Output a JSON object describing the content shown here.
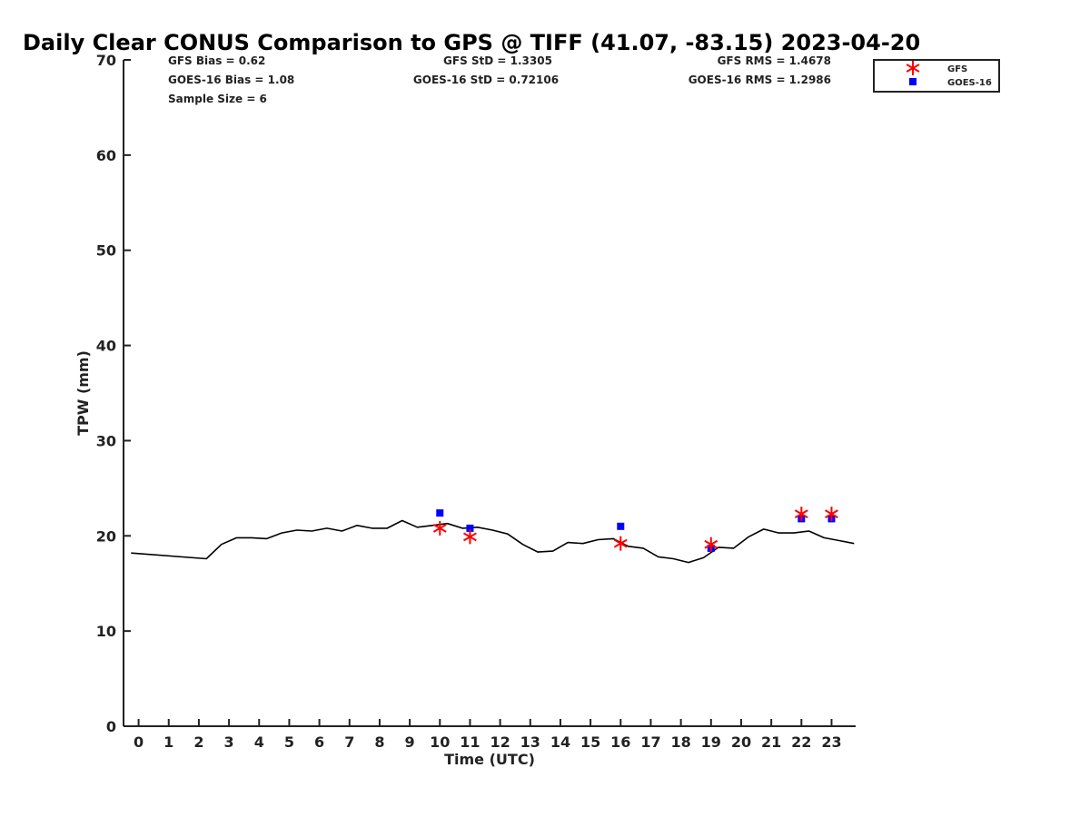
{
  "chart_data": {
    "type": "scatter",
    "title": "Daily Clear CONUS Comparison to GPS @ TIFF (41.07, -83.15) 2023-04-20",
    "xlabel": "Time (UTC)",
    "ylabel": "TPW (mm)",
    "xlim": [
      -0.5,
      23.8
    ],
    "ylim": [
      0,
      70
    ],
    "x_ticks": [
      "0",
      "1",
      "2",
      "3",
      "4",
      "5",
      "6",
      "7",
      "8",
      "9",
      "10",
      "11",
      "12",
      "13",
      "14",
      "15",
      "16",
      "17",
      "18",
      "19",
      "20",
      "21",
      "22",
      "23"
    ],
    "y_ticks": [
      "0",
      "10",
      "20",
      "30",
      "40",
      "50",
      "60",
      "70"
    ],
    "grid": false,
    "legend_position": "top-right, outside plot",
    "stats": {
      "gfs_bias": "GFS Bias = 0.62",
      "goes_bias": "GOES-16 Bias = 1.08",
      "sample_size": "Sample Size = 6",
      "gfs_std": "GFS StD = 1.3305",
      "goes_std": "GOES-16 StD = 0.72106",
      "gfs_rms": "GFS RMS = 1.4678",
      "goes_rms": "GOES-16 RMS = 1.2986"
    },
    "series": [
      {
        "type": "line",
        "color": "#000000",
        "x": [
          -0.25,
          2.25,
          2.75,
          3.25,
          3.75,
          4.25,
          4.75,
          5.25,
          5.75,
          6.25,
          6.75,
          7.25,
          7.75,
          8.25,
          8.75,
          9.25,
          9.75,
          10.25,
          10.75,
          11.25,
          11.75,
          12.25,
          12.75,
          13.25,
          13.75,
          14.25,
          14.75,
          15.25,
          15.75,
          16.25,
          16.75,
          17.25,
          17.75,
          18.25,
          18.75,
          19.25,
          19.75,
          20.25,
          20.75,
          21.25,
          21.75,
          22.25,
          22.75,
          23.25,
          23.75
        ],
        "values": [
          18.2,
          17.6,
          19.1,
          19.8,
          19.8,
          19.7,
          20.3,
          20.6,
          20.5,
          20.8,
          20.5,
          21.1,
          20.8,
          20.8,
          21.6,
          20.9,
          21.1,
          21.3,
          20.8,
          20.9,
          20.6,
          20.2,
          19.1,
          18.3,
          18.4,
          19.3,
          19.2,
          19.6,
          19.7,
          18.9,
          18.7,
          17.8,
          17.6,
          17.2,
          17.7,
          18.8,
          18.7,
          19.9,
          20.7,
          20.3,
          20.3,
          20.5,
          19.8,
          19.5,
          19.2
        ]
      },
      {
        "name": "GFS",
        "type": "scatter",
        "marker": "asterisk",
        "color": "#ff0000",
        "x": [
          10,
          11,
          16,
          19,
          22,
          23
        ],
        "values": [
          20.8,
          19.9,
          19.2,
          19.1,
          22.3,
          22.3
        ]
      },
      {
        "name": "GOES-16",
        "type": "scatter",
        "marker": "square",
        "color": "#0000ff",
        "x": [
          10,
          11,
          16,
          19,
          22,
          23
        ],
        "values": [
          22.4,
          20.8,
          21.0,
          18.7,
          21.8,
          21.8
        ]
      }
    ]
  }
}
